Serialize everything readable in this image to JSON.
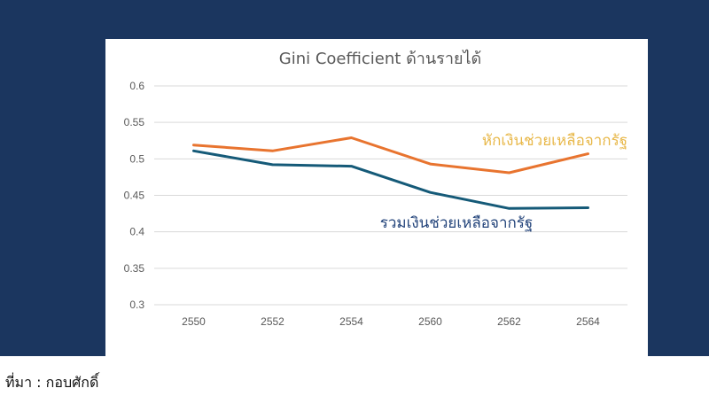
{
  "source": "ที่มา : กอบศักดิ์",
  "chart_data": {
    "type": "line",
    "title": "Gini Coefficient ด้านรายได้",
    "xlabel": "",
    "ylabel": "",
    "categories": [
      "2550",
      "2552",
      "2554",
      "2560",
      "2562",
      "2564"
    ],
    "ylim": [
      0.3,
      0.6
    ],
    "yticks": [
      "0.3",
      "0.35",
      "0.4",
      "0.45",
      "0.5",
      "0.55",
      "0.6"
    ],
    "grid": true,
    "legend": "none",
    "series": [
      {
        "name": "หักเงินช่วยเหลือจากรัฐ",
        "values": [
          0.519,
          0.511,
          0.529,
          0.493,
          0.481,
          0.507
        ],
        "color": "#e8742f",
        "label_color": "#e8b84a"
      },
      {
        "name": "รวมเงินช่วยเหลือจากรัฐ",
        "values": [
          0.511,
          0.492,
          0.49,
          0.454,
          0.432,
          0.433
        ],
        "color": "#155a78",
        "label_color": "#22437a"
      }
    ]
  }
}
